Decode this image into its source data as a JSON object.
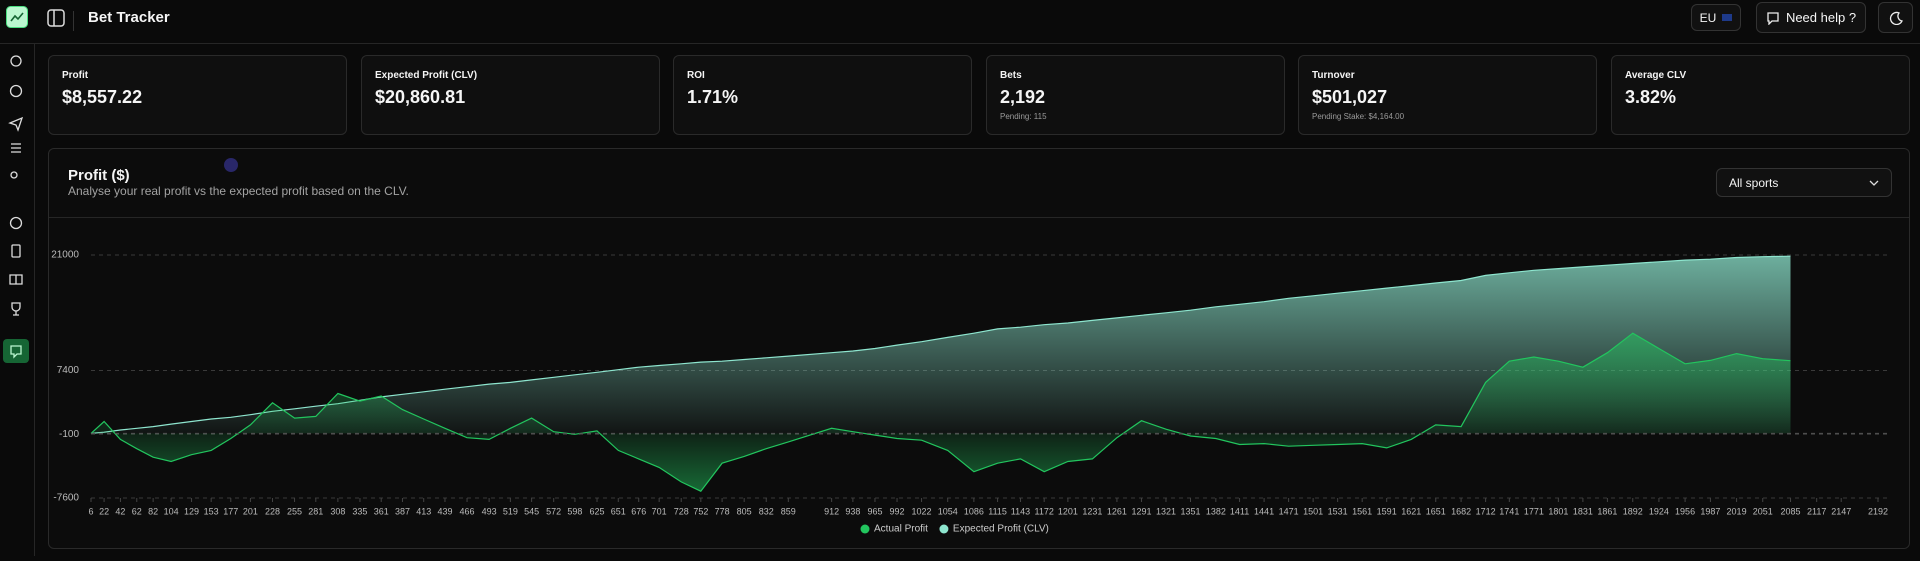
{
  "header": {
    "title": "Bet Tracker",
    "region": "EU",
    "help": "Need help ?"
  },
  "stats": [
    {
      "label": "Profit",
      "value": "$8,557.22"
    },
    {
      "label": "Expected Profit (CLV)",
      "value": "$20,860.81"
    },
    {
      "label": "ROI",
      "value": "1.71%"
    },
    {
      "label": "Bets",
      "value": "2,192",
      "note": "Pending: 115"
    },
    {
      "label": "Turnover",
      "value": "$501,027",
      "note": "Pending Stake: $4,164.00"
    },
    {
      "label": "Average CLV",
      "value": "3.82%"
    }
  ],
  "filter": "All sports",
  "chart_data": {
    "type": "area",
    "title": "Profit ($)",
    "subtitle": "Analyse your real profit vs the expected profit based on the CLV.",
    "x": [
      6,
      22,
      42,
      62,
      82,
      104,
      129,
      153,
      177,
      201,
      228,
      255,
      281,
      308,
      335,
      361,
      387,
      413,
      439,
      466,
      493,
      519,
      545,
      572,
      598,
      625,
      651,
      676,
      701,
      728,
      752,
      778,
      805,
      832,
      859,
      912,
      938,
      965,
      992,
      1022,
      1054,
      1086,
      1115,
      1143,
      1172,
      1201,
      1231,
      1261,
      1291,
      1321,
      1351,
      1382,
      1411,
      1441,
      1471,
      1501,
      1531,
      1561,
      1591,
      1621,
      1651,
      1682,
      1712,
      1741,
      1771,
      1801,
      1831,
      1861,
      1892,
      1924,
      1956,
      1987,
      2019,
      2051,
      2085
    ],
    "series": [
      {
        "name": "Actual Profit",
        "color": "#22c55e",
        "values": [
          0,
          1400,
          -700,
          -1800,
          -2800,
          -3300,
          -2500,
          -2000,
          -600,
          1000,
          3600,
          1800,
          2000,
          4700,
          3800,
          4400,
          2800,
          1700,
          600,
          -500,
          -700,
          600,
          1800,
          200,
          -100,
          300,
          -2000,
          -3000,
          -4000,
          -5700,
          -6800,
          -3500,
          -2700,
          -1800,
          -1000,
          600,
          200,
          -200,
          -600,
          -800,
          -2000,
          -4500,
          -3500,
          -3000,
          -4500,
          -3300,
          -3000,
          -500,
          1500,
          500,
          -300,
          -600,
          -1300,
          -1200,
          -1500,
          -1400,
          -1300,
          -1200,
          -1700,
          -700,
          1000,
          800,
          6000,
          8500,
          9000,
          8500,
          7800,
          9500,
          11800,
          10000,
          8200,
          8600,
          9400,
          8800,
          8557.22
        ]
      },
      {
        "name": "Expected Profit (CLV)",
        "color": "#8ee6cf",
        "values": [
          0,
          150,
          400,
          600,
          800,
          1100,
          1400,
          1700,
          1900,
          2200,
          2600,
          2900,
          3200,
          3500,
          3900,
          4300,
          4600,
          4900,
          5200,
          5500,
          5800,
          6000,
          6300,
          6600,
          6900,
          7200,
          7500,
          7800,
          8000,
          8200,
          8400,
          8500,
          8700,
          8900,
          9100,
          9500,
          9700,
          10000,
          10400,
          10800,
          11300,
          11800,
          12300,
          12500,
          12800,
          13000,
          13300,
          13600,
          13900,
          14200,
          14500,
          14900,
          15200,
          15500,
          15900,
          16200,
          16500,
          16800,
          17100,
          17400,
          17700,
          18000,
          18600,
          18900,
          19200,
          19400,
          19600,
          19800,
          20000,
          20200,
          20400,
          20500,
          20700,
          20800,
          20860.81
        ]
      }
    ],
    "xlim": [
      6,
      2192
    ],
    "xticks": [
      6,
      22,
      42,
      62,
      82,
      104,
      129,
      153,
      177,
      201,
      228,
      255,
      281,
      308,
      335,
      361,
      387,
      413,
      439,
      466,
      493,
      519,
      545,
      572,
      598,
      625,
      651,
      676,
      701,
      728,
      752,
      778,
      805,
      832,
      859,
      912,
      938,
      965,
      992,
      1022,
      1054,
      1086,
      1115,
      1143,
      1172,
      1201,
      1231,
      1261,
      1291,
      1321,
      1351,
      1382,
      1411,
      1441,
      1471,
      1501,
      1531,
      1561,
      1591,
      1621,
      1651,
      1682,
      1712,
      1741,
      1771,
      1801,
      1831,
      1861,
      1892,
      1924,
      1956,
      1987,
      2019,
      2051,
      2085,
      2117,
      2147,
      2192
    ],
    "ylim": [
      -7600,
      21000
    ],
    "yticks": [
      -7600,
      -100,
      7400,
      21000
    ],
    "grid": true,
    "legend": "bottom"
  }
}
